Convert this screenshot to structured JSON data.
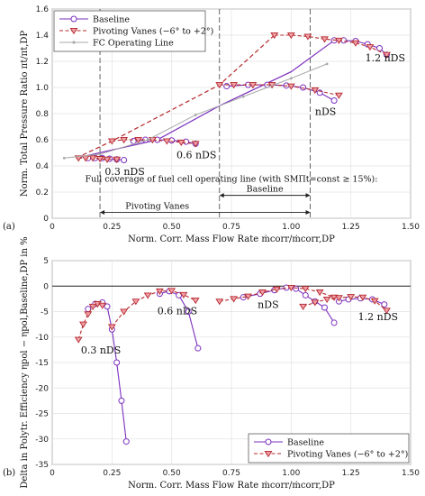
{
  "chart_data": [
    {
      "type": "line",
      "panel_label": "(a)",
      "xlabel": "Norm. Corr. Mass Flow Rate ṁcorr/ṁcorr,DP",
      "ylabel": "Norm. Total Pressure Ratio πt/πt,DP",
      "xlim": [
        0,
        1.5
      ],
      "ylim": [
        0,
        1.6
      ],
      "xticks": [
        "0",
        "0.25",
        "0.50",
        "0.75",
        "1.00",
        "1.25",
        "1.50"
      ],
      "yticks": [
        "0",
        "0.2",
        "0.4",
        "0.6",
        "0.8",
        "1.0",
        "1.2",
        "1.4",
        "1.6"
      ],
      "grid": true,
      "legend_position": "top-left",
      "legend": [
        "Baseline",
        "Pivoting Vanes (−6° to +2°)",
        "FC Operating Line"
      ],
      "annotations": [
        "0.3 nDS",
        "0.6 nDS",
        "nDS",
        "1.2 nDS"
      ],
      "coverage_note": "Full coverage of fuel cell operating line (with SMΠt=const ≥ 15%):",
      "range_labels": [
        "Pivoting Vanes",
        "Baseline"
      ],
      "vertical_lines_x": [
        0.2,
        0.7,
        1.08
      ],
      "series": [
        {
          "name": "Baseline",
          "color": "#7B2FBE",
          "curves": [
            [
              [
                0.15,
                0.46
              ],
              [
                0.18,
                0.46
              ],
              [
                0.21,
                0.46
              ],
              [
                0.24,
                0.455
              ],
              [
                0.27,
                0.45
              ],
              [
                0.3,
                0.445
              ]
            ],
            [
              [
                0.34,
                0.59
              ],
              [
                0.39,
                0.6
              ],
              [
                0.44,
                0.6
              ],
              [
                0.5,
                0.595
              ],
              [
                0.56,
                0.585
              ],
              [
                0.6,
                0.57
              ]
            ],
            [
              [
                0.73,
                1.01
              ],
              [
                0.82,
                1.02
              ],
              [
                0.9,
                1.02
              ],
              [
                0.98,
                1.015
              ],
              [
                1.05,
                1.0
              ],
              [
                1.12,
                0.96
              ],
              [
                1.18,
                0.9
              ]
            ],
            [
              [
                1.18,
                1.36
              ],
              [
                1.22,
                1.36
              ],
              [
                1.27,
                1.355
              ],
              [
                1.32,
                1.33
              ],
              [
                1.37,
                1.3
              ],
              [
                1.4,
                1.25
              ]
            ]
          ]
        },
        {
          "name": "Pivoting Vanes (−6° to +2°)",
          "color": "#B5282D",
          "curves": [
            [
              [
                0.11,
                0.46
              ],
              [
                0.14,
                0.46
              ],
              [
                0.17,
                0.46
              ],
              [
                0.2,
                0.455
              ],
              [
                0.23,
                0.45
              ],
              [
                0.27,
                0.45
              ]
            ],
            [
              [
                0.25,
                0.59
              ],
              [
                0.3,
                0.6
              ],
              [
                0.36,
                0.6
              ],
              [
                0.42,
                0.6
              ],
              [
                0.48,
                0.59
              ],
              [
                0.54,
                0.58
              ],
              [
                0.6,
                0.57
              ]
            ],
            [
              [
                0.7,
                1.02
              ],
              [
                0.76,
                1.02
              ],
              [
                0.84,
                1.02
              ],
              [
                0.92,
                1.02
              ],
              [
                1.0,
                1.01
              ],
              [
                1.1,
                0.98
              ],
              [
                1.2,
                0.94
              ]
            ],
            [
              [
                0.93,
                1.4
              ],
              [
                1.0,
                1.4
              ],
              [
                1.07,
                1.39
              ],
              [
                1.14,
                1.37
              ],
              [
                1.2,
                1.36
              ],
              [
                1.27,
                1.34
              ],
              [
                1.33,
                1.31
              ],
              [
                1.4,
                1.25
              ]
            ]
          ]
        },
        {
          "name": "FC Operating Line",
          "color": "#AAAAAA",
          "curves": [
            [
              [
                0.05,
                0.46
              ],
              [
                0.2,
                0.49
              ],
              [
                0.4,
                0.6
              ],
              [
                0.6,
                0.79
              ],
              [
                0.8,
                0.93
              ],
              [
                1.0,
                1.07
              ],
              [
                1.15,
                1.18
              ]
            ]
          ]
        }
      ],
      "baseline_operating_line": [
        [
          0.1,
          0.46
        ],
        [
          0.44,
          0.6
        ],
        [
          0.7,
          0.86
        ],
        [
          1.0,
          1.12
        ],
        [
          1.18,
          1.36
        ]
      ],
      "pivoting_operating_line": [
        [
          0.1,
          0.46
        ],
        [
          0.25,
          0.59
        ],
        [
          0.7,
          1.02
        ],
        [
          0.93,
          1.4
        ]
      ]
    },
    {
      "type": "line",
      "panel_label": "(b)",
      "xlabel": "Norm. Corr. Mass Flow Rate ṁcorr/ṁcorr,DP",
      "ylabel": "Delta in Polytr. Efficiency ηpol − ηpol,Baseline,DP in %",
      "xlim": [
        0,
        1.5
      ],
      "ylim": [
        -35,
        5
      ],
      "xticks": [
        "0",
        "0.25",
        "0.50",
        "0.75",
        "1.00",
        "1.25",
        "1.50"
      ],
      "yticks": [
        "-35",
        "-30",
        "-25",
        "-20",
        "-15",
        "-10",
        "-5",
        "0",
        "5"
      ],
      "grid": true,
      "legend_position": "bottom-right",
      "legend": [
        "Baseline",
        "Pivoting Vanes (−6° to +2°)"
      ],
      "annotations": [
        "0.3 nDS",
        "0.6 nDS",
        "nDS",
        "1.2 nDS"
      ],
      "series": [
        {
          "name": "Baseline",
          "color": "#7B2FBE",
          "curves": [
            [
              [
                0.15,
                -4.5
              ],
              [
                0.18,
                -3.5
              ],
              [
                0.21,
                -3.2
              ],
              [
                0.23,
                -4.0
              ],
              [
                0.25,
                -8.5
              ],
              [
                0.27,
                -15
              ],
              [
                0.29,
                -22.5
              ],
              [
                0.31,
                -30.5
              ]
            ],
            [
              [
                0.45,
                -1.5
              ],
              [
                0.49,
                -1.0
              ],
              [
                0.53,
                -1.8
              ],
              [
                0.57,
                -5.0
              ],
              [
                0.61,
                -12.2
              ]
            ],
            [
              [
                0.8,
                -2.2
              ],
              [
                0.87,
                -1.5
              ],
              [
                0.93,
                -0.8
              ],
              [
                0.98,
                -0.3
              ],
              [
                1.02,
                -0.5
              ],
              [
                1.06,
                -1.8
              ],
              [
                1.1,
                -3.0
              ],
              [
                1.14,
                -4.2
              ],
              [
                1.18,
                -7.2
              ]
            ],
            [
              [
                1.2,
                -3.0
              ],
              [
                1.24,
                -2.6
              ],
              [
                1.29,
                -2.4
              ],
              [
                1.34,
                -2.6
              ],
              [
                1.39,
                -3.6
              ]
            ]
          ]
        },
        {
          "name": "Pivoting Vanes (−6° to +2°)",
          "color": "#B5282D",
          "curves": [
            [
              [
                0.11,
                -10.5
              ],
              [
                0.13,
                -7.5
              ],
              [
                0.15,
                -5.5
              ],
              [
                0.17,
                -4.0
              ],
              [
                0.19,
                -3.5
              ],
              [
                0.21,
                -3.8
              ]
            ],
            [
              [
                0.25,
                -8.0
              ],
              [
                0.3,
                -5.0
              ],
              [
                0.35,
                -3.0
              ],
              [
                0.4,
                -1.8
              ],
              [
                0.45,
                -1.0
              ],
              [
                0.5,
                -0.9
              ],
              [
                0.55,
                -1.7
              ],
              [
                0.6,
                -2.8
              ]
            ],
            [
              [
                0.7,
                -3.0
              ],
              [
                0.76,
                -2.5
              ],
              [
                0.82,
                -2.0
              ],
              [
                0.88,
                -1.2
              ],
              [
                0.94,
                -0.6
              ],
              [
                1.0,
                -0.3
              ],
              [
                1.06,
                -0.5
              ],
              [
                1.12,
                -1.2
              ],
              [
                1.18,
                -2.2
              ]
            ],
            [
              [
                1.05,
                -4.0
              ],
              [
                1.1,
                -3.2
              ],
              [
                1.15,
                -2.6
              ],
              [
                1.2,
                -2.3
              ],
              [
                1.25,
                -2.1
              ],
              [
                1.3,
                -2.2
              ],
              [
                1.35,
                -2.9
              ],
              [
                1.4,
                -4.8
              ]
            ]
          ]
        }
      ]
    }
  ]
}
